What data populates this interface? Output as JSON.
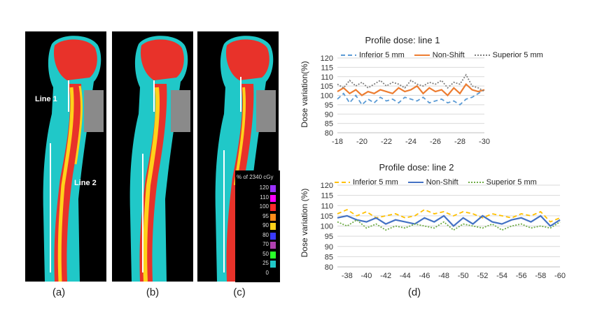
{
  "panels": [
    {
      "label": "(a)"
    },
    {
      "label": "(b)"
    },
    {
      "label": "(c)"
    }
  ],
  "annotations": {
    "line1": "Line 1",
    "line2": "Line 2"
  },
  "colorbar": {
    "title": "% of 2340 cGy",
    "levels": [
      {
        "value": "120",
        "color": "#9b30ff"
      },
      {
        "value": "110",
        "color": "#ff00ff"
      },
      {
        "value": "100",
        "color": "#ff2a2a"
      },
      {
        "value": "95",
        "color": "#ff8c1a"
      },
      {
        "value": "90",
        "color": "#ffd21a"
      },
      {
        "value": "80",
        "color": "#3a3aff"
      },
      {
        "value": "70",
        "color": "#b040b0"
      },
      {
        "value": "50",
        "color": "#2aff2a"
      },
      {
        "value": "25",
        "color": "#20c8c8"
      },
      {
        "value": "0",
        "color": "#000000"
      }
    ]
  },
  "figure_label": "(d)",
  "chart_data": [
    {
      "type": "line",
      "title": "Profile dose: line 1",
      "ylabel": "Dose variation(%)",
      "xlabel": "",
      "ylim": [
        80,
        120
      ],
      "yticks": [
        "120",
        "115",
        "110",
        "105",
        "100",
        "95",
        "90",
        "85",
        "80"
      ],
      "xticks": [
        "-18",
        "-20",
        "-22",
        "-24",
        "-26",
        "-28",
        "-30"
      ],
      "xlim": [
        -18,
        -30
      ],
      "grid": true,
      "legend": "top",
      "series": [
        {
          "name": "Inferior 5 mm",
          "color": "#5b9bd5",
          "dash": "6,4",
          "x": [
            -18,
            -18.5,
            -19,
            -19.5,
            -20,
            -20.5,
            -21,
            -21.5,
            -22,
            -22.5,
            -23,
            -23.5,
            -24,
            -24.5,
            -25,
            -25.5,
            -26,
            -26.5,
            -27,
            -27.5,
            -28,
            -28.5,
            -29,
            -29.5,
            -30
          ],
          "values": [
            98,
            101,
            96,
            100,
            95,
            98,
            96,
            99,
            97,
            98,
            96,
            99,
            98,
            97,
            99,
            96,
            97,
            98,
            96,
            97,
            95,
            98,
            99,
            101,
            103
          ]
        },
        {
          "name": "Non-Shift",
          "color": "#ed7d31",
          "dash": "",
          "x": [
            -18,
            -18.5,
            -19,
            -19.5,
            -20,
            -20.5,
            -21,
            -21.5,
            -22,
            -22.5,
            -23,
            -23.5,
            -24,
            -24.5,
            -25,
            -25.5,
            -26,
            -26.5,
            -27,
            -27.5,
            -28,
            -28.5,
            -29,
            -29.5,
            -30
          ],
          "values": [
            102,
            104,
            101,
            103,
            100,
            102,
            101,
            103,
            102,
            101,
            104,
            102,
            103,
            105,
            101,
            104,
            102,
            103,
            100,
            104,
            101,
            106,
            103,
            102,
            103
          ]
        },
        {
          "name": "Superior 5 mm",
          "color": "#7f7f7f",
          "dash": "2,2",
          "x": [
            -18,
            -18.5,
            -19,
            -19.5,
            -20,
            -20.5,
            -21,
            -21.5,
            -22,
            -22.5,
            -23,
            -23.5,
            -24,
            -24.5,
            -25,
            -25.5,
            -26,
            -26.5,
            -27,
            -27.5,
            -28,
            -28.5,
            -29,
            -29.5,
            -30
          ],
          "values": [
            106,
            104,
            108,
            105,
            107,
            104,
            106,
            108,
            105,
            107,
            106,
            104,
            108,
            106,
            105,
            107,
            106,
            108,
            104,
            107,
            106,
            111,
            105,
            104,
            102
          ]
        }
      ]
    },
    {
      "type": "line",
      "title": "Profile dose: line 2",
      "ylabel": "Dose variation (%)",
      "xlabel": "",
      "ylim": [
        80,
        120
      ],
      "yticks": [
        "120",
        "115",
        "110",
        "105",
        "100",
        "95",
        "90",
        "85",
        "80"
      ],
      "xticks": [
        "-38",
        "-40",
        "-42",
        "-44",
        "-46",
        "-48",
        "-50",
        "-52",
        "-54",
        "-56",
        "-58",
        "-60"
      ],
      "xlim": [
        -37,
        -60
      ],
      "grid": true,
      "legend": "top",
      "series": [
        {
          "name": "Inferior 5 mm",
          "color": "#ffc000",
          "dash": "6,4",
          "x": [
            -37,
            -38,
            -39,
            -40,
            -41,
            -42,
            -43,
            -44,
            -45,
            -46,
            -47,
            -48,
            -49,
            -50,
            -51,
            -52,
            -53,
            -54,
            -55,
            -56,
            -57,
            -58,
            -59,
            -60
          ],
          "values": [
            106,
            108,
            105,
            107,
            104,
            105,
            106,
            104,
            105,
            108,
            106,
            107,
            105,
            107,
            106,
            104,
            106,
            105,
            104,
            106,
            105,
            107,
            102,
            104
          ]
        },
        {
          "name": "Non-Shift",
          "color": "#4472c4",
          "dash": "",
          "x": [
            -37,
            -38,
            -39,
            -40,
            -41,
            -42,
            -43,
            -44,
            -45,
            -46,
            -47,
            -48,
            -49,
            -50,
            -51,
            -52,
            -53,
            -54,
            -55,
            -56,
            -57,
            -58,
            -59,
            -60
          ],
          "values": [
            104,
            105,
            103,
            102,
            104,
            101,
            103,
            102,
            101,
            104,
            102,
            105,
            100,
            104,
            101,
            105,
            102,
            101,
            103,
            104,
            102,
            105,
            100,
            103
          ]
        },
        {
          "name": "Superior 5 mm",
          "color": "#70ad47",
          "dash": "2,2",
          "x": [
            -37,
            -38,
            -39,
            -40,
            -41,
            -42,
            -43,
            -44,
            -45,
            -46,
            -47,
            -48,
            -49,
            -50,
            -51,
            -52,
            -53,
            -54,
            -55,
            -56,
            -57,
            -58,
            -59,
            -60
          ],
          "values": [
            102,
            100,
            103,
            99,
            101,
            98,
            100,
            99,
            101,
            100,
            99,
            102,
            98,
            101,
            100,
            99,
            101,
            98,
            100,
            101,
            99,
            100,
            99,
            102
          ]
        }
      ]
    }
  ]
}
